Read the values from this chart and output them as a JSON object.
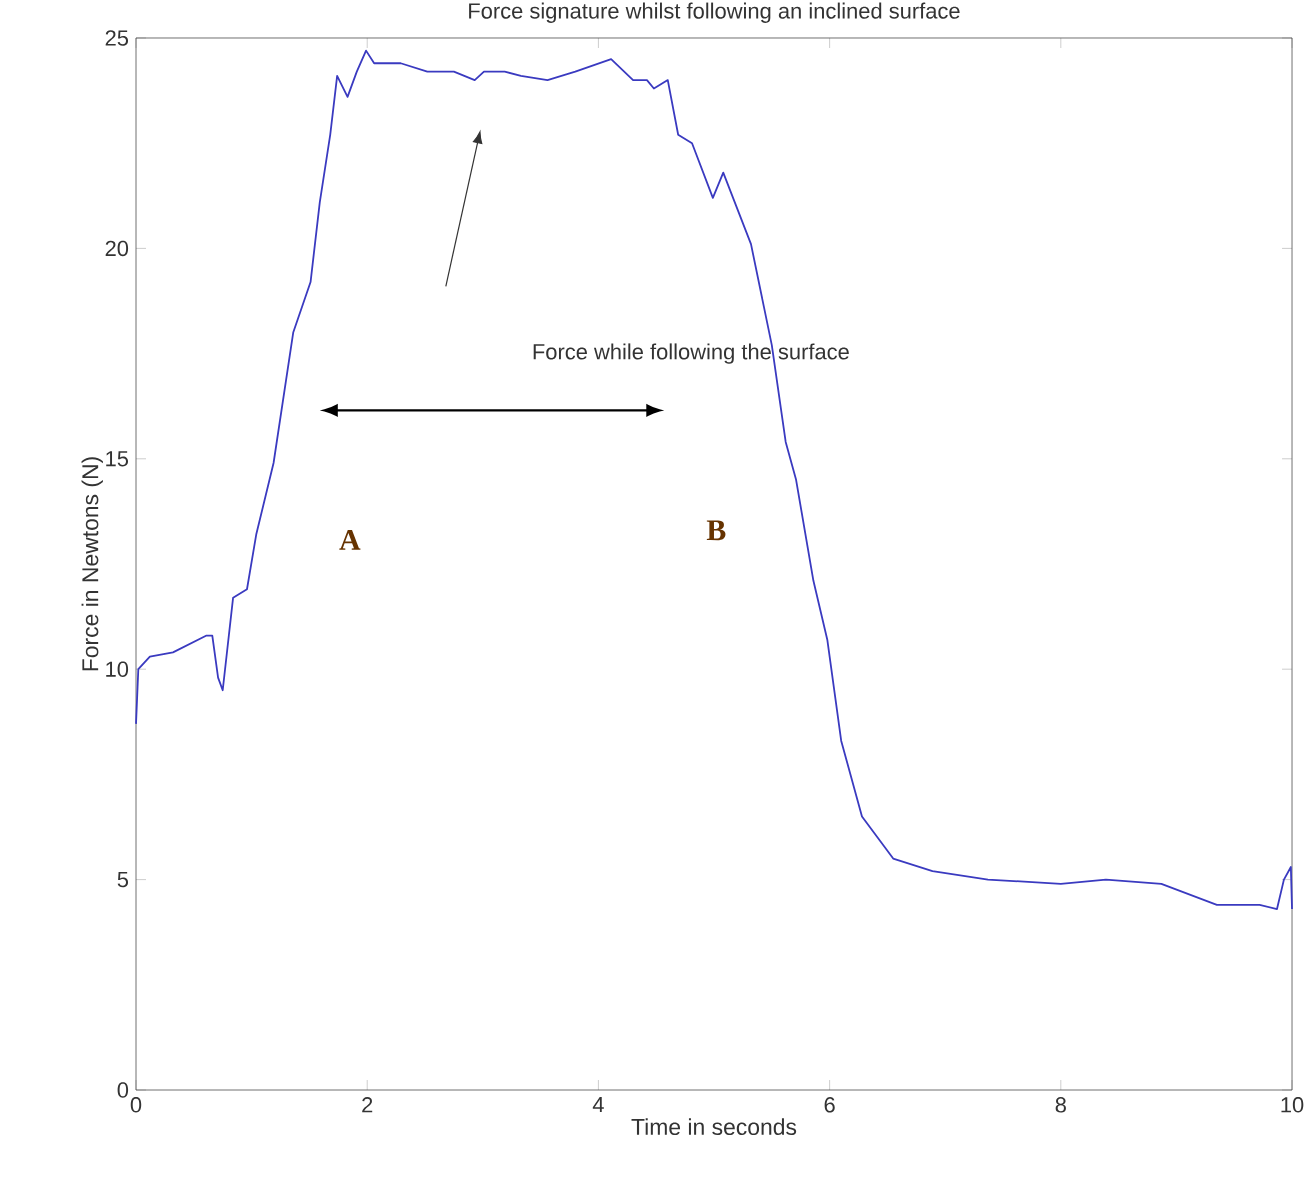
{
  "chart_data": {
    "type": "line",
    "title": "Force signature whilst following an inclined surface",
    "xlabel": "Time in seconds",
    "ylabel": "Force in Newtons (N)",
    "xlim": [
      0,
      10
    ],
    "ylim": [
      0,
      25
    ],
    "xticks": [
      0,
      2,
      4,
      6,
      8,
      10
    ],
    "yticks": [
      0,
      5,
      10,
      15,
      20,
      25
    ],
    "grid": false,
    "marker": "none",
    "line_style": "solid",
    "series": [
      {
        "color": "#3a3ac0",
        "x": [
          0,
          0.02,
          0.12,
          0.32,
          0.61,
          0.66,
          0.71,
          0.75,
          0.84,
          0.96,
          1.04,
          1.19,
          1.36,
          1.51,
          1.59,
          1.68,
          1.74,
          1.83,
          1.91,
          1.99,
          2.06,
          2.29,
          2.52,
          2.75,
          2.93,
          3.01,
          3.19,
          3.33,
          3.56,
          3.8,
          4.11,
          4.3,
          4.42,
          4.48,
          4.6,
          4.69,
          4.81,
          4.99,
          5.08,
          5.32,
          5.5,
          5.62,
          5.71,
          5.86,
          5.98,
          6.1,
          6.28,
          6.55,
          6.89,
          7.37,
          8.0,
          8.39,
          8.87,
          9.35,
          9.72,
          9.87,
          9.93,
          9.99,
          10.0
        ],
        "values": [
          8.7,
          10.0,
          10.3,
          10.4,
          10.8,
          10.8,
          9.8,
          9.5,
          11.7,
          11.9,
          13.2,
          14.9,
          18.0,
          19.2,
          21.1,
          22.7,
          24.1,
          23.6,
          24.2,
          24.7,
          24.4,
          24.4,
          24.2,
          24.2,
          24.0,
          24.2,
          24.2,
          24.1,
          24.0,
          24.2,
          24.5,
          24.0,
          24.0,
          23.8,
          24.0,
          22.7,
          22.5,
          21.2,
          21.8,
          20.1,
          17.7,
          15.4,
          14.5,
          12.1,
          10.7,
          8.3,
          6.5,
          5.5,
          5.2,
          5.0,
          4.9,
          5.0,
          4.9,
          4.4,
          4.4,
          4.3,
          5.0,
          5.3,
          4.3
        ]
      }
    ],
    "annotations": [
      "Force while following the surface",
      "A",
      "B"
    ]
  }
}
